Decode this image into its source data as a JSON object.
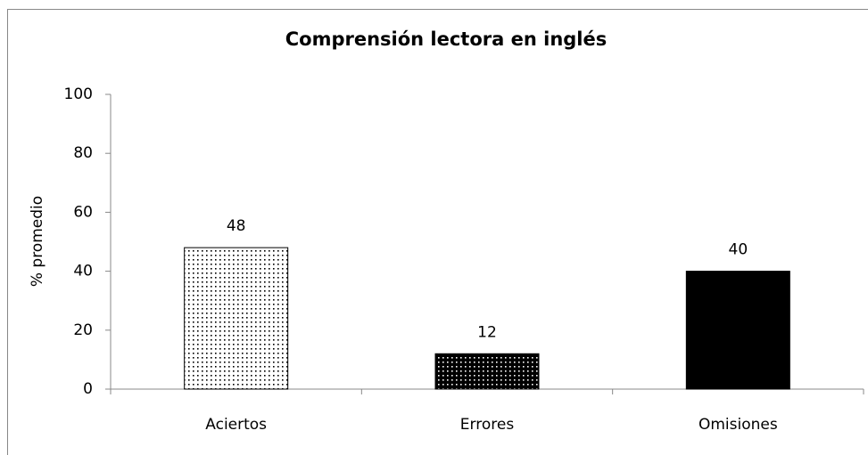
{
  "chart_data": {
    "type": "bar",
    "title": "Comprensión lectora en inglés",
    "y_label": "% promedio",
    "categories": [
      "Aciertos",
      "Errores",
      "Omisiones"
    ],
    "values": [
      48,
      12,
      40
    ],
    "colors": [
      "#ffffff",
      "#000000",
      "#000000"
    ],
    "patterns": [
      "dots",
      "dots",
      "solid"
    ],
    "ylim": [
      0,
      100
    ],
    "yticks": [
      0,
      20,
      40,
      60,
      80,
      100
    ],
    "grid": false
  }
}
